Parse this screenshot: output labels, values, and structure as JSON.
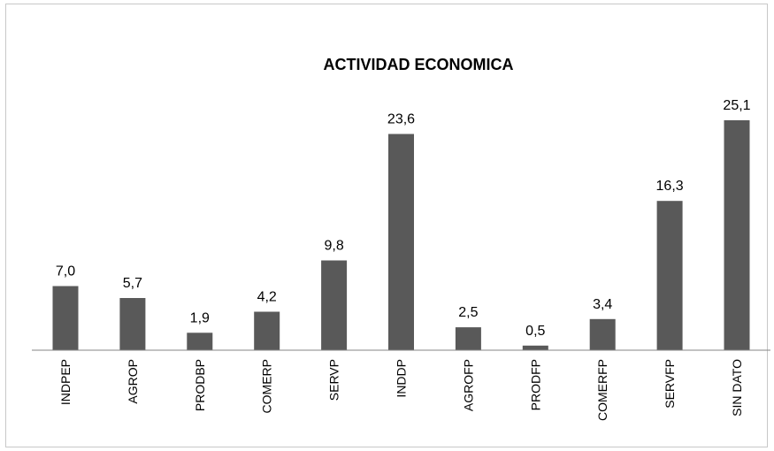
{
  "chart_data": {
    "type": "bar",
    "title": "ACTIVIDAD ECONOMICA",
    "categories": [
      "INDPEP",
      "AGROP",
      "PRODBP",
      "COMERP",
      "SERVP",
      "INDDP",
      "AGROFP",
      "PRODFP",
      "COMERFP",
      "SERVFP",
      "SIN DATO"
    ],
    "values": [
      7.0,
      5.7,
      1.9,
      4.2,
      9.8,
      23.6,
      2.5,
      0.5,
      3.4,
      16.3,
      25.1
    ],
    "value_labels": [
      "7,0",
      "5,7",
      "1,9",
      "4,2",
      "9,8",
      "23,6",
      "2,5",
      "0,5",
      "3,4",
      "16,3",
      "25,1"
    ],
    "xlabel": "",
    "ylabel": "",
    "ylim": [
      0,
      25.1
    ],
    "grid": false,
    "legend": "none",
    "colors": {
      "bar": "#595959",
      "axis": "#868686",
      "frame": "#c8c8c8"
    }
  }
}
